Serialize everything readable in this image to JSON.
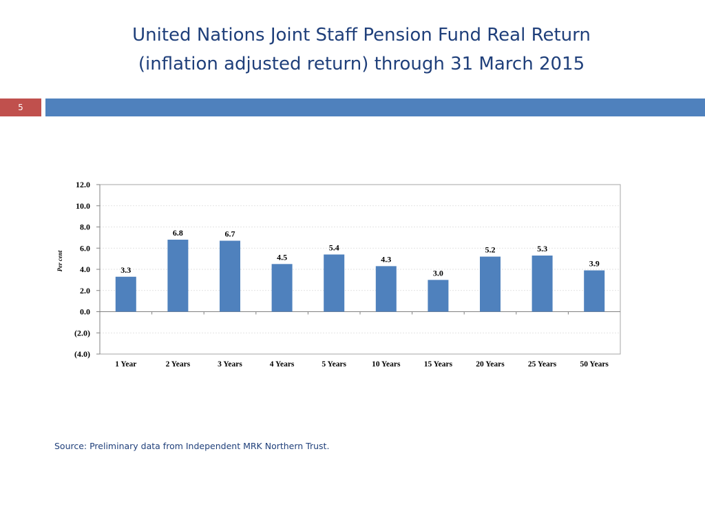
{
  "slide": {
    "title_line1": "United Nations Joint Staff Pension Fund Real Return",
    "title_line2": "(inflation adjusted return) through 31 March 2015",
    "number": "5",
    "source": "Source: Preliminary data from Independent MRK Northern Trust."
  },
  "colors": {
    "title_text": "#1f3f7a",
    "accent_bar": "#4f81bd",
    "number_box": "#c0504d",
    "bar_fill": "#4f81bd"
  },
  "chart_data": {
    "type": "bar",
    "title": "",
    "xlabel": "",
    "ylabel": "Per cent",
    "categories": [
      "1 Year",
      "2 Years",
      "3 Years",
      "4 Years",
      "5 Years",
      "10 Years",
      "15 Years",
      "20 Years",
      "25 Years",
      "50 Years"
    ],
    "values": [
      3.3,
      6.8,
      6.7,
      4.5,
      5.4,
      4.3,
      3.0,
      5.2,
      5.3,
      3.9
    ],
    "data_labels": [
      "3.3",
      "6.8",
      "6.7",
      "4.5",
      "5.4",
      "4.3",
      "3.0",
      "5.2",
      "5.3",
      "3.9"
    ],
    "ylim": [
      -4,
      12
    ],
    "yticks": [
      12,
      10,
      8,
      6,
      4,
      2,
      0,
      -2,
      -4
    ],
    "ytick_labels": [
      "12.0",
      "10.0",
      "8.0",
      "6.0",
      "4.0",
      "2.0",
      "0.0",
      "(2.0)",
      "(4.0)"
    ],
    "grid": true,
    "legend": "none"
  }
}
